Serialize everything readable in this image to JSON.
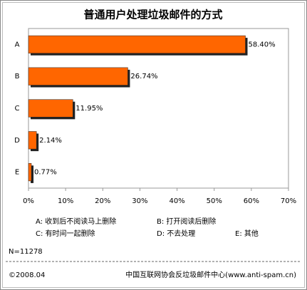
{
  "chart_data": {
    "type": "bar",
    "orientation": "horizontal",
    "title": "普通用户处理垃圾邮件的方式",
    "categories": [
      "A",
      "B",
      "C",
      "D",
      "E"
    ],
    "values": [
      58.4,
      26.74,
      11.95,
      2.14,
      0.77
    ],
    "value_labels": [
      "58.40%",
      "26.74%",
      "11.95%",
      "2.14%",
      "0.77%"
    ],
    "color": "#ff6600",
    "xlim": [
      0,
      70
    ],
    "xticks": [
      {
        "value": 0,
        "label": "0%"
      },
      {
        "value": 10,
        "label": "10%"
      },
      {
        "value": 20,
        "label": "20%"
      },
      {
        "value": 30,
        "label": "30%"
      },
      {
        "value": 40,
        "label": "40%"
      },
      {
        "value": 50,
        "label": "50%"
      },
      {
        "value": 60,
        "label": "60%"
      },
      {
        "value": 70,
        "label": "70%"
      }
    ],
    "notes": [
      "A: 收到后不阅读马上删除",
      "B: 打开阅读后删除",
      "C: 有时间一起删除",
      "D: 不去处理",
      "E: 其他"
    ],
    "sample": "N=11278",
    "date": "©2008.04",
    "source": "中国互联网协会反垃圾邮件中心(www.anti-spam.cn)"
  }
}
